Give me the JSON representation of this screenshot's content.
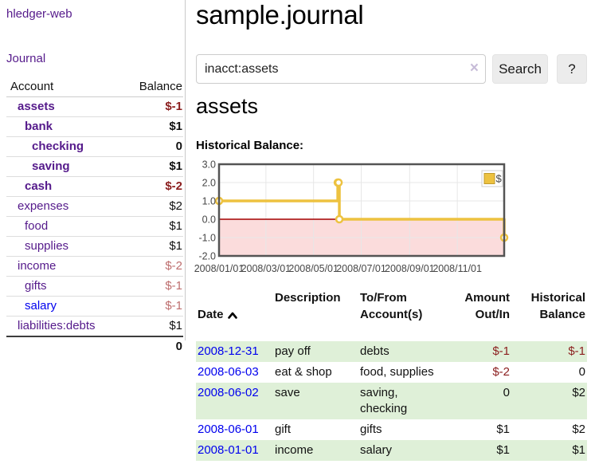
{
  "app": {
    "brand": "hledger-web"
  },
  "theme": {
    "link_purple": "#551a8b",
    "link_blue": "#0000ee",
    "negative_dark_red": "#8b1e1e",
    "negative_light_red": "#bd6d6d",
    "row_highlight_green": "#dff0d8",
    "chart_series_yellow": "#edc240"
  },
  "icons": {
    "clear_search": "×",
    "sort_ascending": "chevron-up",
    "help": "?"
  },
  "sidebar": {
    "journal_link": "Journal",
    "accounts_header": {
      "account": "Account",
      "balance": "Balance"
    },
    "accounts": [
      {
        "name": "assets",
        "balance": "$-1",
        "level": 1
      },
      {
        "name": "bank",
        "balance": "$1",
        "level": 2
      },
      {
        "name": "checking",
        "balance": "0",
        "level": 3
      },
      {
        "name": "saving",
        "balance": "$1",
        "level": 3
      },
      {
        "name": "cash",
        "balance": "$-2",
        "level": 2
      },
      {
        "name": "expenses",
        "balance": "$2",
        "level": 1
      },
      {
        "name": "food",
        "balance": "$1",
        "level": 2
      },
      {
        "name": "supplies",
        "balance": "$1",
        "level": 2
      },
      {
        "name": "income",
        "balance": "$-2",
        "level": 1
      },
      {
        "name": "gifts",
        "balance": "$-1",
        "level": 2
      },
      {
        "name": "salary",
        "balance": "$-1",
        "level": 2
      },
      {
        "name": "liabilities:debts",
        "balance": "$1",
        "level": 1
      }
    ],
    "total": "0"
  },
  "main": {
    "title": "sample.journal",
    "search": {
      "value": "inacct:assets",
      "placeholder": "",
      "button_label": "Search",
      "help_label": "?"
    },
    "account_heading": "assets"
  },
  "chart_data": {
    "type": "line",
    "style": "steps",
    "title": "Historical Balance:",
    "series": [
      {
        "name": "$",
        "color": "#edc240",
        "points": [
          {
            "date": "2008-01-01",
            "value": 1
          },
          {
            "date": "2008-06-01",
            "value": 2
          },
          {
            "date": "2008-06-02",
            "value": 2
          },
          {
            "date": "2008-06-03",
            "value": 0
          },
          {
            "date": "2008-12-31",
            "value": -1
          }
        ]
      }
    ],
    "x_range": [
      "2008-01-01",
      "2008-12-31"
    ],
    "x_ticks": [
      "2008/01/01",
      "2008/03/01",
      "2008/05/01",
      "2008/07/01",
      "2008/09/01",
      "2008/11/01"
    ],
    "y_ticks": [
      3.0,
      2.0,
      1.0,
      0.0,
      -1.0,
      -2.0
    ],
    "ylim": [
      -2,
      3
    ],
    "grid": true,
    "legend": {
      "label": "$",
      "position": "top-right"
    },
    "negative_region_fill": "#fbdcdc",
    "zero_line_color": "#a40000"
  },
  "register": {
    "headers": {
      "date": "Date",
      "description": "Description",
      "account": "To/From\nAccount(s)",
      "amount": "Amount\nOut/In",
      "balance": "Historical\nBalance"
    },
    "rows": [
      {
        "date": "2008-12-31",
        "description": "pay off",
        "account": "debts",
        "amount": "$-1",
        "balance": "$-1"
      },
      {
        "date": "2008-06-03",
        "description": "eat & shop",
        "account": "food, supplies",
        "amount": "$-2",
        "balance": "0"
      },
      {
        "date": "2008-06-02",
        "description": "save",
        "account": "saving, checking",
        "amount": "0",
        "balance": "$2"
      },
      {
        "date": "2008-06-01",
        "description": "gift",
        "account": "gifts",
        "amount": "$1",
        "balance": "$2"
      },
      {
        "date": "2008-01-01",
        "description": "income",
        "account": "salary",
        "amount": "$1",
        "balance": "$1"
      }
    ]
  }
}
